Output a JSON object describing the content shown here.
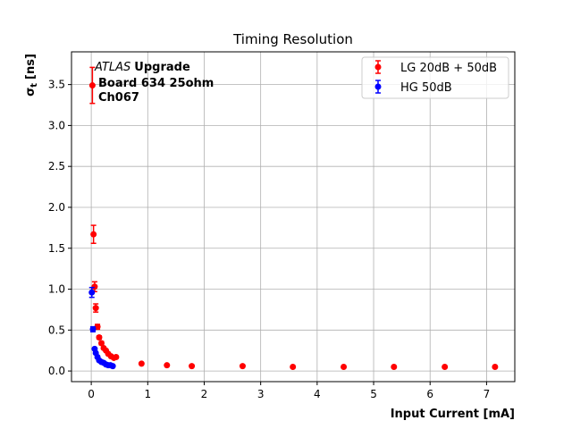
{
  "chart_data": {
    "type": "scatter",
    "title": "Timing Resolution",
    "xlabel": "Input Current [mA]",
    "ylabel_symbol": "σ",
    "ylabel_subscript": "t",
    "ylabel_unit": "[ns]",
    "xlim": [
      -0.35,
      7.5
    ],
    "ylim": [
      -0.13,
      3.9
    ],
    "xticks": [
      0,
      1,
      2,
      3,
      4,
      5,
      6,
      7
    ],
    "yticks": [
      0.0,
      0.5,
      1.0,
      1.5,
      2.0,
      2.5,
      3.0,
      3.5
    ],
    "xtick_labels": [
      "0",
      "1",
      "2",
      "3",
      "4",
      "5",
      "6",
      "7"
    ],
    "ytick_labels": [
      "0.0",
      "0.5",
      "1.0",
      "1.5",
      "2.0",
      "2.5",
      "3.0",
      "3.5"
    ],
    "grid": true,
    "legend_position": "top-right",
    "annotation": {
      "italic": "ATLAS",
      "bold": "Upgrade",
      "line2": "Board 634 25ohm",
      "line3": "Ch067"
    },
    "series": [
      {
        "name": "LG 20dB + 50dB",
        "color": "#ff0000",
        "points": [
          {
            "x": 0.02,
            "y": 3.49,
            "err": 0.22
          },
          {
            "x": 0.04,
            "y": 1.67,
            "err": 0.11
          },
          {
            "x": 0.06,
            "y": 1.03,
            "err": 0.06
          },
          {
            "x": 0.08,
            "y": 0.77,
            "err": 0.05
          },
          {
            "x": 0.11,
            "y": 0.54,
            "err": 0.03
          },
          {
            "x": 0.14,
            "y": 0.41,
            "err": 0.02
          },
          {
            "x": 0.18,
            "y": 0.34,
            "err": 0.02
          },
          {
            "x": 0.22,
            "y": 0.28,
            "err": 0.01
          },
          {
            "x": 0.26,
            "y": 0.25,
            "err": 0.01
          },
          {
            "x": 0.3,
            "y": 0.21,
            "err": 0.01
          },
          {
            "x": 0.35,
            "y": 0.18,
            "err": 0.01
          },
          {
            "x": 0.4,
            "y": 0.16,
            "err": 0.01
          },
          {
            "x": 0.44,
            "y": 0.17,
            "err": 0.01
          },
          {
            "x": 0.89,
            "y": 0.09,
            "err": 0.005
          },
          {
            "x": 1.34,
            "y": 0.07,
            "err": 0.005
          },
          {
            "x": 1.78,
            "y": 0.06,
            "err": 0.005
          },
          {
            "x": 2.68,
            "y": 0.06,
            "err": 0.005
          },
          {
            "x": 3.57,
            "y": 0.05,
            "err": 0.005
          },
          {
            "x": 4.47,
            "y": 0.05,
            "err": 0.005
          },
          {
            "x": 5.36,
            "y": 0.05,
            "err": 0.005
          },
          {
            "x": 6.26,
            "y": 0.05,
            "err": 0.005
          },
          {
            "x": 7.15,
            "y": 0.05,
            "err": 0.005
          }
        ]
      },
      {
        "name": "HG 50dB",
        "color": "#0000ff",
        "points": [
          {
            "x": 0.01,
            "y": 0.96,
            "err": 0.06
          },
          {
            "x": 0.03,
            "y": 0.51,
            "err": 0.03
          },
          {
            "x": 0.06,
            "y": 0.27,
            "err": 0.015
          },
          {
            "x": 0.08,
            "y": 0.22,
            "err": 0.01
          },
          {
            "x": 0.11,
            "y": 0.17,
            "err": 0.01
          },
          {
            "x": 0.14,
            "y": 0.13,
            "err": 0.01
          },
          {
            "x": 0.18,
            "y": 0.11,
            "err": 0.005
          },
          {
            "x": 0.22,
            "y": 0.1,
            "err": 0.005
          },
          {
            "x": 0.26,
            "y": 0.08,
            "err": 0.005
          },
          {
            "x": 0.3,
            "y": 0.07,
            "err": 0.005
          },
          {
            "x": 0.34,
            "y": 0.07,
            "err": 0.005
          },
          {
            "x": 0.38,
            "y": 0.06,
            "err": 0.005
          }
        ]
      }
    ]
  }
}
